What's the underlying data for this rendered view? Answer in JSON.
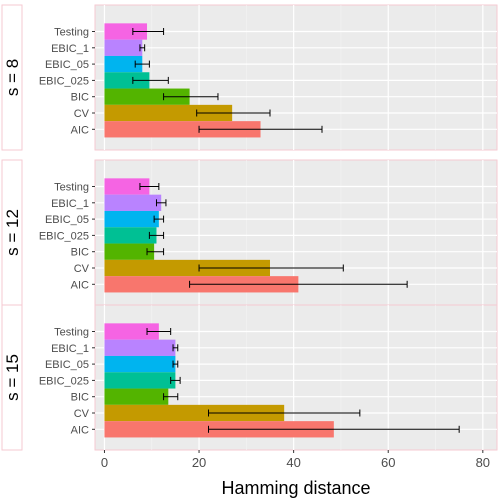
{
  "chart_data": {
    "type": "bar",
    "orientation": "horizontal",
    "xlabel": "Hamming distance",
    "xlim": [
      -2,
      83
    ],
    "x_ticks": [
      0,
      20,
      40,
      60,
      80
    ],
    "x_tick_labels": [
      "0",
      "20",
      "40",
      "60",
      "80"
    ],
    "grid": true,
    "categories_top_to_bottom": [
      "Testing",
      "EBIC_1",
      "EBIC_05",
      "EBIC_025",
      "BIC",
      "CV",
      "AIC"
    ],
    "colors": {
      "Testing": "#F564E3",
      "EBIC_1": "#B983FF",
      "EBIC_05": "#00B4EF",
      "EBIC_025": "#00C094",
      "BIC": "#53B400",
      "CV": "#C49A00",
      "AIC": "#F8766D"
    },
    "panels": [
      {
        "label": "s = 8",
        "values": {
          "Testing": 9,
          "EBIC_1": 8,
          "EBIC_05": 8,
          "EBIC_025": 9.5,
          "BIC": 18,
          "CV": 27,
          "AIC": 33
        },
        "errors": {
          "Testing": [
            6,
            12.5
          ],
          "EBIC_1": [
            7.5,
            8.5
          ],
          "EBIC_05": [
            6.5,
            9.5
          ],
          "EBIC_025": [
            6,
            13.5
          ],
          "BIC": [
            12.5,
            24
          ],
          "CV": [
            19.5,
            35
          ],
          "AIC": [
            20,
            46
          ]
        }
      },
      {
        "label": "s = 12",
        "values": {
          "Testing": 9.5,
          "EBIC_1": 12,
          "EBIC_05": 11.5,
          "EBIC_025": 11,
          "BIC": 10.5,
          "CV": 35,
          "AIC": 41
        },
        "errors": {
          "Testing": [
            7.5,
            11.5
          ],
          "EBIC_1": [
            11,
            13
          ],
          "EBIC_05": [
            10.5,
            12.5
          ],
          "EBIC_025": [
            9.5,
            12.5
          ],
          "BIC": [
            9,
            12.5
          ],
          "CV": [
            20,
            50.5
          ],
          "AIC": [
            18,
            64
          ]
        }
      },
      {
        "label": "s = 15",
        "values": {
          "Testing": 11.5,
          "EBIC_1": 15,
          "EBIC_05": 15,
          "EBIC_025": 15,
          "BIC": 13.5,
          "CV": 38,
          "AIC": 48.5
        },
        "errors": {
          "Testing": [
            9,
            14
          ],
          "EBIC_1": [
            14.5,
            15.5
          ],
          "EBIC_05": [
            14.5,
            15.5
          ],
          "EBIC_025": [
            14,
            16
          ],
          "BIC": [
            12.5,
            15.5
          ],
          "CV": [
            22,
            54
          ],
          "AIC": [
            22,
            75
          ]
        }
      }
    ]
  }
}
